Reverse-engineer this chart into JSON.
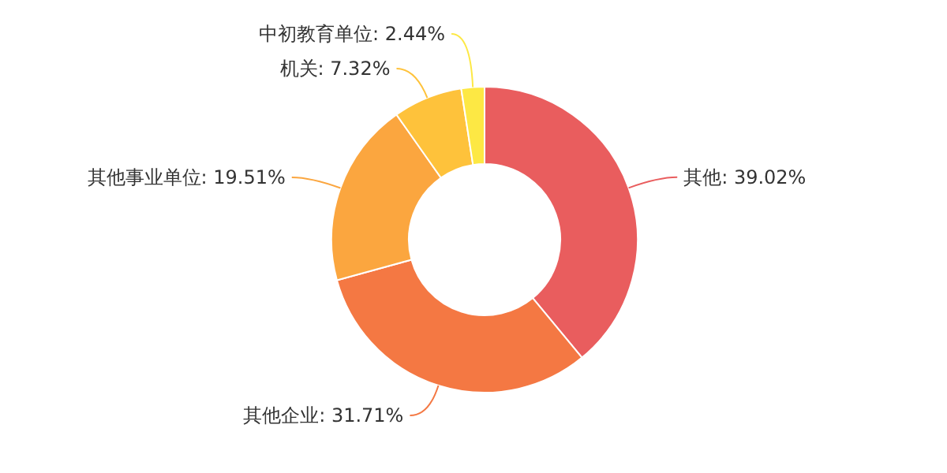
{
  "chart_data": {
    "type": "donut",
    "categories": [
      "其他",
      "其他企业",
      "其他事业单位",
      "机关",
      "中初教育单位"
    ],
    "values": [
      39.02,
      31.71,
      19.51,
      7.32,
      2.44
    ],
    "value_labels": [
      "39.02%",
      "31.71%",
      "19.51%",
      "7.32%",
      "2.44%"
    ],
    "colors": [
      "#e95d5e",
      "#f47843",
      "#fba63f",
      "#fec23b",
      "#fde844"
    ],
    "legend": false
  }
}
